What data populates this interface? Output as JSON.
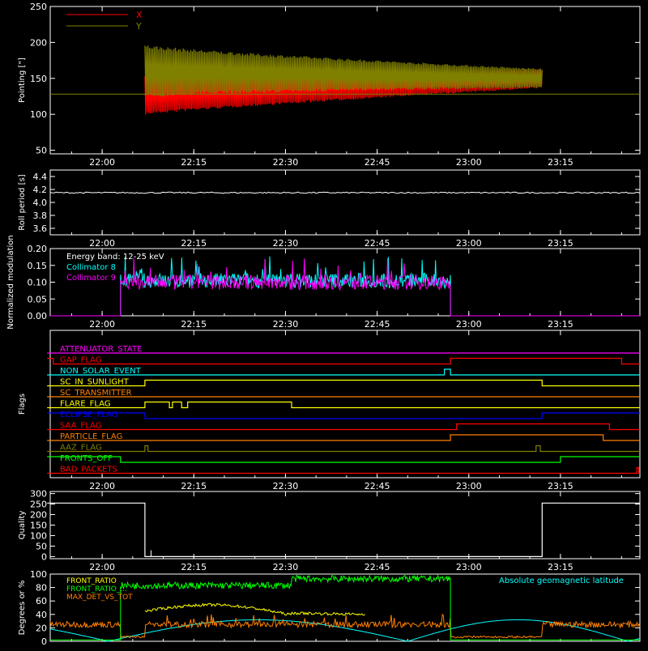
{
  "chart_data": [
    {
      "type": "line",
      "ylabel": "Pointing [\"]",
      "ylim": [
        45,
        250
      ],
      "yticks": [
        50,
        100,
        150,
        200,
        250
      ],
      "xticks": [
        "22:00",
        "22:15",
        "22:30",
        "22:45",
        "23:00",
        "23:15"
      ],
      "legend": "top-left",
      "series": [
        {
          "name": "X",
          "color": "#ff0000",
          "start": "22:07",
          "end": "23:12",
          "center_start": 128,
          "center_end": 150,
          "amp_start": 58,
          "amp_end": 27,
          "sign": -1
        },
        {
          "name": "Y",
          "color": "#808000",
          "start": "22:07",
          "end": "23:12",
          "center_start": 160,
          "center_end": 150,
          "amp_start": 75,
          "amp_end": 27,
          "sign": 1
        }
      ],
      "reference_level": 128
    },
    {
      "type": "line",
      "ylabel": "Roll period [s]",
      "ylim": [
        3.5,
        4.5
      ],
      "yticks": [
        "3.6",
        "3.8",
        "4.0",
        "4.2",
        "4.4"
      ],
      "xticks": [
        "22:00",
        "22:15",
        "22:30",
        "22:45",
        "23:00",
        "23:15"
      ],
      "series": [
        {
          "name": "",
          "color": "#ffffff",
          "value": 4.15
        }
      ]
    },
    {
      "type": "line",
      "ylabel": "Normalized modulation",
      "ylim": [
        0,
        0.2
      ],
      "yticks": [
        "0.00",
        "0.05",
        "0.10",
        "0.15",
        "0.20"
      ],
      "xticks": [
        "22:00",
        "22:15",
        "22:30",
        "22:45",
        "23:00",
        "23:15"
      ],
      "legend": "top-left",
      "annotation": "Energy band: 12-25 keV",
      "series": [
        {
          "name": "Collimator 8",
          "color": "#00ffff",
          "start": "22:03",
          "end": "22:57",
          "level": 0.105
        },
        {
          "name": "Collimator 9",
          "color": "#ff00ff",
          "start": "22:03",
          "end": "22:57",
          "level": 0.1
        }
      ]
    },
    {
      "type": "line",
      "ylabel": "Flags",
      "xticks": [
        "22:00",
        "22:15",
        "22:30",
        "22:45",
        "23:00",
        "23:15"
      ],
      "flags": [
        {
          "name": "ATTENUATOR_STATE",
          "color": "#ff00ff",
          "segments": [
            [
              "21:51",
              "23:28",
              0
            ]
          ]
        },
        {
          "name": "GAP_FLAG",
          "color": "#ff0000",
          "segments": [
            [
              "21:51",
              "21:52",
              1
            ],
            [
              "21:52",
              "22:57",
              0
            ],
            [
              "22:57",
              "23:25",
              1
            ],
            [
              "23:25",
              "23:28",
              0
            ]
          ]
        },
        {
          "name": "NON_SOLAR_EVENT",
          "color": "#00ffff",
          "segments": [
            [
              "21:51",
              "22:56",
              0
            ],
            [
              "22:56",
              "22:57",
              1
            ],
            [
              "22:57",
              "23:28",
              0
            ]
          ]
        },
        {
          "name": "SC_IN_SUNLIGHT",
          "color": "#ffff00",
          "segments": [
            [
              "21:51",
              "22:07",
              0
            ],
            [
              "22:07",
              "23:12",
              1
            ],
            [
              "23:12",
              "23:28",
              0
            ]
          ]
        },
        {
          "name": "SC_TRANSMITTER",
          "color": "#ff8000",
          "segments": [
            [
              "21:51",
              "23:28",
              0
            ]
          ]
        },
        {
          "name": "FLARE_FLAG",
          "color": "#ffff00",
          "segments": [
            [
              "21:51",
              "22:07",
              0
            ],
            [
              "22:07",
              "22:11",
              1
            ],
            [
              "22:11",
              "22:11.5",
              0
            ],
            [
              "22:11.5",
              "22:13",
              1
            ],
            [
              "22:13",
              "22:14",
              0
            ],
            [
              "22:14",
              "22:31",
              1
            ],
            [
              "22:31",
              "23:28",
              0
            ]
          ]
        },
        {
          "name": "ECLIPSE_FLAG",
          "color": "#0000ff",
          "segments": [
            [
              "21:51",
              "22:07",
              1
            ],
            [
              "22:07",
              "23:12",
              0
            ],
            [
              "23:12",
              "23:28",
              1
            ]
          ]
        },
        {
          "name": "SAA_FLAG",
          "color": "#ff0000",
          "segments": [
            [
              "21:51",
              "22:58",
              0
            ],
            [
              "22:58",
              "23:23",
              1
            ],
            [
              "23:23",
              "23:28",
              0
            ]
          ]
        },
        {
          "name": "PARTICLE_FLAG",
          "color": "#ff8000",
          "segments": [
            [
              "21:51",
              "22:57",
              0
            ],
            [
              "22:57",
              "23:22",
              1
            ],
            [
              "23:22",
              "23:28",
              0
            ]
          ]
        },
        {
          "name": "AAZ_FLAG",
          "color": "#808000",
          "segments": [
            [
              "21:51",
              "22:07",
              0
            ],
            [
              "22:07",
              "22:07.5",
              1
            ],
            [
              "22:07.5",
              "23:11",
              0
            ],
            [
              "23:11",
              "23:11.7",
              1
            ],
            [
              "23:11.7",
              "23:28",
              0
            ]
          ]
        },
        {
          "name": "FRONTS_OFF",
          "color": "#00ff00",
          "segments": [
            [
              "21:51",
              "22:03",
              1
            ],
            [
              "22:03",
              "23:15",
              0
            ],
            [
              "23:15",
              "23:28",
              1
            ]
          ]
        },
        {
          "name": "BAD_PACKETS",
          "color": "#ff0000",
          "segments": [
            [
              "21:51",
              "23:27.5",
              0
            ],
            [
              "23:27.5",
              "23:27.8",
              1
            ],
            [
              "23:27.8",
              "23:28",
              0
            ]
          ]
        }
      ]
    },
    {
      "type": "line",
      "ylabel": "Quality",
      "ylim": [
        -10,
        310
      ],
      "yticks": [
        "0",
        "50",
        "100",
        "150",
        "200",
        "250",
        "300"
      ],
      "xticks": [
        "22:00",
        "22:15",
        "22:30",
        "22:45",
        "23:00",
        "23:15"
      ],
      "series": [
        {
          "name": "",
          "color": "#ffffff",
          "segments": [
            [
              "21:51",
              "22:07",
              255
            ],
            [
              "22:07",
              "23:12",
              0
            ],
            [
              "23:12",
              "23:28",
              255
            ]
          ]
        }
      ]
    },
    {
      "type": "line",
      "ylabel": "Degrees or %",
      "ylim": [
        0,
        100
      ],
      "yticks": [
        "0",
        "20",
        "40",
        "60",
        "80",
        "100"
      ],
      "annotation": "Absolute geomagnetic latitude",
      "legend": "top-left",
      "series": [
        {
          "name": "FRONT_RATIO",
          "color": "#ffff00",
          "start": "22:07",
          "end": "22:43",
          "shape": [
            45,
            55,
            40
          ]
        },
        {
          "name": "FRONT_RATIO_...",
          "color": "#00ff00",
          "start": "22:03",
          "end": "22:57",
          "levels": [
            [
              22.03,
              22.31,
              83
            ],
            [
              22.31,
              22.57,
              93
            ]
          ]
        },
        {
          "name": "MAX_DET_VS_TOT",
          "color": "#ff8000",
          "level": 25
        },
        {
          "name": "",
          "color": "#00ffff",
          "minima": [
            "22:01",
            "22:50",
            "23:26"
          ],
          "max": 32
        }
      ]
    }
  ]
}
